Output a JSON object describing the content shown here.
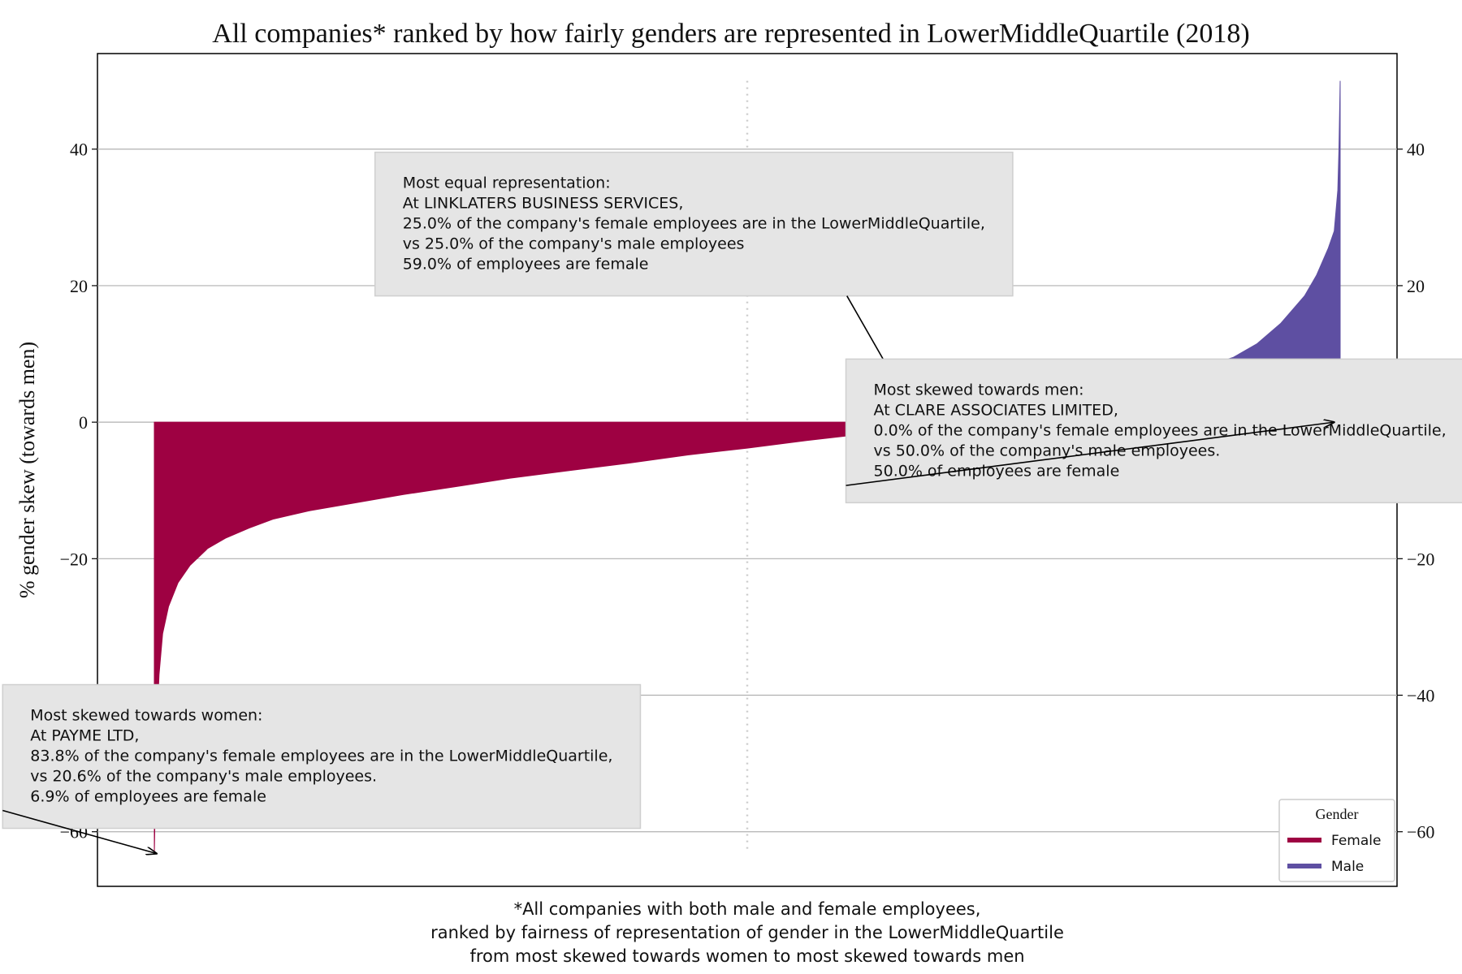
{
  "chart_data": {
    "type": "area",
    "title": "All companies* ranked by how fairly genders are represented in LowerMiddleQuartile (2018)",
    "ylabel": "% gender skew (towards men)",
    "ylim": [
      -68,
      54
    ],
    "yticks": [
      40,
      20,
      0,
      -20,
      -40,
      -60
    ],
    "ytick_labels": [
      "40",
      "20",
      "0",
      "−20",
      "−40",
      "−60"
    ],
    "grid": true,
    "series": [
      {
        "name": "Female",
        "color": "#9e0142",
        "points": [
          [
            0,
            -63.2
          ],
          [
            0.002,
            -45
          ],
          [
            0.004,
            -37
          ],
          [
            0.007,
            -31
          ],
          [
            0.012,
            -27
          ],
          [
            0.02,
            -23.5
          ],
          [
            0.03,
            -21
          ],
          [
            0.045,
            -18.5
          ],
          [
            0.06,
            -17
          ],
          [
            0.08,
            -15.5
          ],
          [
            0.1,
            -14.2
          ],
          [
            0.13,
            -13
          ],
          [
            0.17,
            -11.8
          ],
          [
            0.21,
            -10.6
          ],
          [
            0.26,
            -9.3
          ],
          [
            0.3,
            -8.2
          ],
          [
            0.35,
            -7.1
          ],
          [
            0.4,
            -6
          ],
          [
            0.45,
            -4.8
          ],
          [
            0.5,
            -3.8
          ],
          [
            0.55,
            -2.7
          ],
          [
            0.6,
            -1.7
          ],
          [
            0.64,
            -0.8
          ],
          [
            0.655,
            -0.2
          ]
        ]
      },
      {
        "name": "Male",
        "color": "#5e4fa2",
        "points": [
          [
            0.655,
            0
          ],
          [
            0.66,
            0.2
          ],
          [
            0.7,
            1.3
          ],
          [
            0.75,
            2.6
          ],
          [
            0.8,
            4.3
          ],
          [
            0.85,
            6.3
          ],
          [
            0.88,
            7.8
          ],
          [
            0.91,
            9.5
          ],
          [
            0.93,
            11.5
          ],
          [
            0.95,
            14.5
          ],
          [
            0.97,
            18.5
          ],
          [
            0.98,
            21.5
          ],
          [
            0.99,
            25.5
          ],
          [
            0.995,
            28
          ],
          [
            0.998,
            34
          ],
          [
            0.999,
            40
          ],
          [
            1.0,
            50
          ]
        ]
      }
    ],
    "reference_line": {
      "x": 0.5,
      "style": "dotted",
      "color": "#cccccc"
    },
    "annotations": [
      {
        "name": "most-equal",
        "point": [
          0.645,
          0
        ],
        "text_anchor_x": 0.455,
        "text_anchor_y": 18.5,
        "lines": [
          "Most equal representation:",
          "At LINKLATERS BUSINESS SERVICES,",
          "25.0% of the company's female employees are in the LowerMiddleQuartile,",
          "vs 25.0% of the company's male employees",
          "59.0% of employees are female"
        ]
      },
      {
        "name": "most-skewed-men",
        "point": [
          0.995,
          0
        ],
        "text_anchor_x": 0.848,
        "text_anchor_y": -11.8,
        "lines": [
          "Most skewed towards men:",
          "    At CLARE ASSOCIATES LIMITED,",
          "    0.0% of the company's female employees are in the LowerMiddleQuartile,",
          "    vs 50.0% of the company's male employees.",
          "    50.0% of employees are female"
        ]
      },
      {
        "name": "most-skewed-women",
        "point": [
          0.002,
          -63.2
        ],
        "text_anchor_x": 0.141,
        "text_anchor_y": -59.5,
        "lines": [
          "Most skewed towards women:",
          "    At PAYME LTD,",
          "    83.8% of the company's female employees are in the LowerMiddleQuartile,",
          "    vs  20.6% of the company's male employees.",
          "    6.9% of employees are female"
        ]
      }
    ],
    "legend": {
      "title": "Gender",
      "placement": "lower-right",
      "entries": [
        {
          "label": "Female",
          "color": "#9e0142"
        },
        {
          "label": "Male",
          "color": "#5e4fa2"
        }
      ]
    },
    "footnote": [
      "*All companies with both male and female employees,",
      "ranked by fairness of representation of gender in the LowerMiddleQuartile",
      "from most skewed towards women to most skewed towards men"
    ]
  }
}
